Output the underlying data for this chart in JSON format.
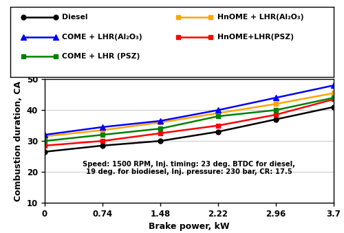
{
  "x": [
    0,
    0.74,
    1.48,
    2.22,
    2.96,
    3.7
  ],
  "series_order": [
    "Diesel",
    "HnOME + LHR(Al₂O₃)",
    "COME + LHR(Al₂O₃)",
    "HnOME+LHR(PSZ)",
    "COME + LHR (PSZ)"
  ],
  "series": {
    "Diesel": {
      "values": [
        26.5,
        28.5,
        30.0,
        33.0,
        37.0,
        41.0
      ],
      "color": "#000000",
      "marker": "o",
      "markersize": 5
    },
    "HnOME + LHR(Al₂O₃)": {
      "values": [
        31.5,
        33.5,
        36.0,
        39.0,
        42.0,
        45.5
      ],
      "color": "#FFA500",
      "marker": "s",
      "markersize": 5
    },
    "COME + LHR(Al₂O₃)": {
      "values": [
        32.0,
        34.5,
        36.5,
        40.0,
        44.0,
        48.0
      ],
      "color": "#0000FF",
      "marker": "^",
      "markersize": 6
    },
    "HnOME+LHR(PSZ)": {
      "values": [
        28.5,
        30.0,
        32.5,
        35.0,
        38.5,
        43.5
      ],
      "color": "#FF0000",
      "marker": "s",
      "markersize": 5
    },
    "COME + LHR (PSZ)": {
      "values": [
        30.0,
        32.0,
        34.0,
        38.0,
        40.0,
        44.0
      ],
      "color": "#008000",
      "marker": "s",
      "markersize": 5
    }
  },
  "legend_col1": [
    "Diesel",
    "COME + LHR(Al₂O₃)",
    "COME + LHR (PSZ)"
  ],
  "legend_col2": [
    "HnOME + LHR(Al₂O₃)",
    "HnOME+LHR(PSZ)"
  ],
  "xlabel": "Brake power, kW",
  "ylabel": "Combustion duration, CA",
  "ylim": [
    10,
    50
  ],
  "xlim": [
    0,
    3.7
  ],
  "xticks": [
    0,
    0.74,
    1.48,
    2.22,
    2.96,
    3.7
  ],
  "yticks": [
    10,
    20,
    30,
    40,
    50
  ],
  "annotation_line1": "Speed: 1500 RPM, Inj. timing: 23 deg. BTDC for diesel,",
  "annotation_line2": "19 deg. for biodiesel, Inj. pressure: 230 bar, CR: 17.5",
  "grid_color": "#cccccc"
}
